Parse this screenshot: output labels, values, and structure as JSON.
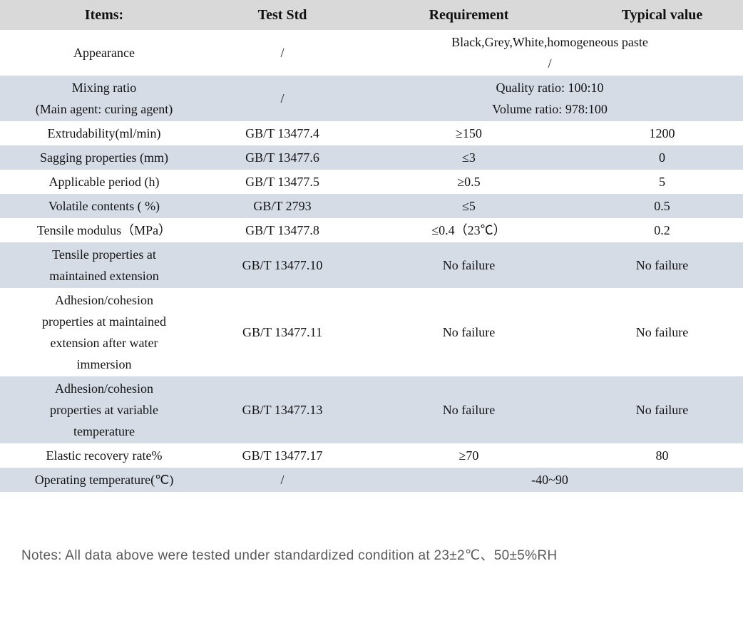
{
  "table": {
    "headers": [
      "Items:",
      "Test Std",
      "Requirement",
      "Typical value"
    ],
    "rows": [
      {
        "item": [
          "Appearance"
        ],
        "std": "/",
        "merged": [
          "Black,Grey,White,homogeneous paste",
          "/"
        ]
      },
      {
        "item": [
          "Mixing ratio",
          "(Main agent: curing agent)"
        ],
        "std": "/",
        "merged": [
          "Quality ratio: 100:10",
          "Volume ratio: 978:100"
        ]
      },
      {
        "item": [
          "Extrudability(ml/min)"
        ],
        "std": "GB/T 13477.4",
        "requirement": "≥150",
        "typical": "1200"
      },
      {
        "item": [
          "Sagging properties (mm)"
        ],
        "std": "GB/T 13477.6",
        "requirement": "≤3",
        "typical": "0"
      },
      {
        "item": [
          "Applicable period (h)"
        ],
        "std": "GB/T 13477.5",
        "requirement": "≥0.5",
        "typical": "5"
      },
      {
        "item": [
          "Volatile contents ( %)"
        ],
        "std": "GB/T 2793",
        "requirement": "≤5",
        "typical": "0.5"
      },
      {
        "item": [
          "Tensile modulus（MPa）"
        ],
        "std": "GB/T 13477.8",
        "requirement": "≤0.4（23℃）",
        "typical": "0.2"
      },
      {
        "item": [
          "Tensile properties at",
          "maintained extension"
        ],
        "std": "GB/T 13477.10",
        "requirement": "No failure",
        "typical": "No failure"
      },
      {
        "item": [
          "Adhesion/cohesion",
          "properties at maintained",
          "extension after water",
          "immersion"
        ],
        "std": "GB/T 13477.11",
        "requirement": "No failure",
        "typical": "No failure"
      },
      {
        "item": [
          "Adhesion/cohesion",
          "properties at variable",
          "temperature"
        ],
        "std": "GB/T 13477.13",
        "requirement": "No failure",
        "typical": "No failure"
      },
      {
        "item": [
          "Elastic recovery rate%"
        ],
        "std": "GB/T 13477.17",
        "requirement": "≥70",
        "typical": "80"
      },
      {
        "item": [
          "Operating temperature(℃)"
        ],
        "std": "/",
        "merged": [
          "-40~90"
        ]
      }
    ]
  },
  "notes": "Notes: All data above were tested under standardized condition at 23±2℃、50±5%RH"
}
